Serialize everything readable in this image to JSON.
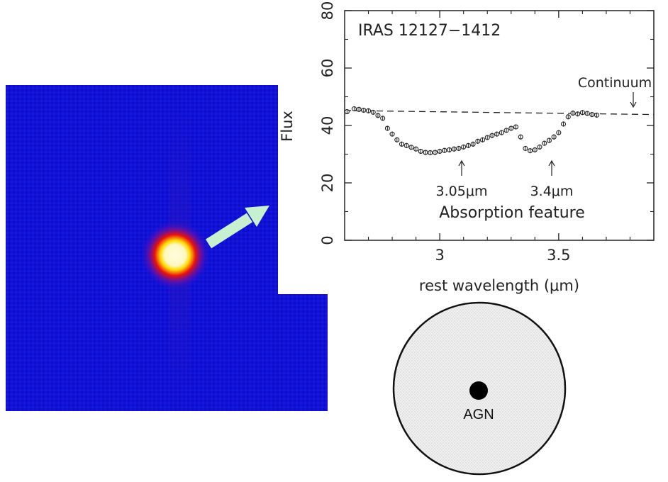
{
  "image_panel": {
    "background_color": "#1010d8",
    "source_core_color": "#fffde0",
    "source_halo_color": "#e81010",
    "arrow_color": "#c6f0d0"
  },
  "chart_data": {
    "type": "scatter",
    "title": "IRAS 12127−1412",
    "xlabel": "rest wavelength (μm)",
    "ylabel": "Flux",
    "xlim": [
      2.6,
      3.9
    ],
    "ylim": [
      0,
      80
    ],
    "xticks": [
      3,
      3.5
    ],
    "xtick_labels": [
      "3",
      "3.5"
    ],
    "yticks": [
      0,
      20,
      40,
      60,
      80
    ],
    "ytick_labels": [
      "0",
      "20",
      "40",
      "60",
      "80"
    ],
    "grid": false,
    "series": [
      {
        "marker": "open-circle",
        "x": [
          2.61,
          2.64,
          2.66,
          2.68,
          2.7,
          2.72,
          2.74,
          2.76,
          2.78,
          2.8,
          2.82,
          2.84,
          2.86,
          2.88,
          2.9,
          2.92,
          2.94,
          2.96,
          2.98,
          3.0,
          3.02,
          3.04,
          3.06,
          3.08,
          3.1,
          3.12,
          3.14,
          3.16,
          3.18,
          3.2,
          3.22,
          3.24,
          3.26,
          3.28,
          3.3,
          3.32,
          3.34,
          3.36,
          3.38,
          3.4,
          3.42,
          3.44,
          3.46,
          3.48,
          3.5,
          3.52,
          3.54,
          3.56,
          3.58,
          3.6,
          3.62,
          3.64,
          3.66
        ],
        "y": [
          44.8,
          45.8,
          45.6,
          45.3,
          45.1,
          44.6,
          43.5,
          42.5,
          39.0,
          37.0,
          35.0,
          33.5,
          33.0,
          32.4,
          31.8,
          31.0,
          30.6,
          30.5,
          30.6,
          31.0,
          31.3,
          31.5,
          31.8,
          32.0,
          32.5,
          33.0,
          33.5,
          34.5,
          35.0,
          35.8,
          36.5,
          37.0,
          37.5,
          38.3,
          39.0,
          39.5,
          36.0,
          32.0,
          31.2,
          31.5,
          32.5,
          33.8,
          34.8,
          36.0,
          37.5,
          40.5,
          43.0,
          44.3,
          44.0,
          44.5,
          44.2,
          43.8,
          43.6
        ]
      }
    ],
    "continuum": {
      "style": "dashed",
      "x": [
        2.6,
        3.9
      ],
      "y": [
        45.2,
        43.8
      ]
    },
    "annotations": {
      "continuum": "Continuum",
      "feature_305": "3.05μm",
      "feature_34": "3.4μm",
      "absorption": "Absorption feature"
    }
  },
  "diagram": {
    "nucleus_label": "AGN",
    "disk_fill": "#eaeaea"
  }
}
